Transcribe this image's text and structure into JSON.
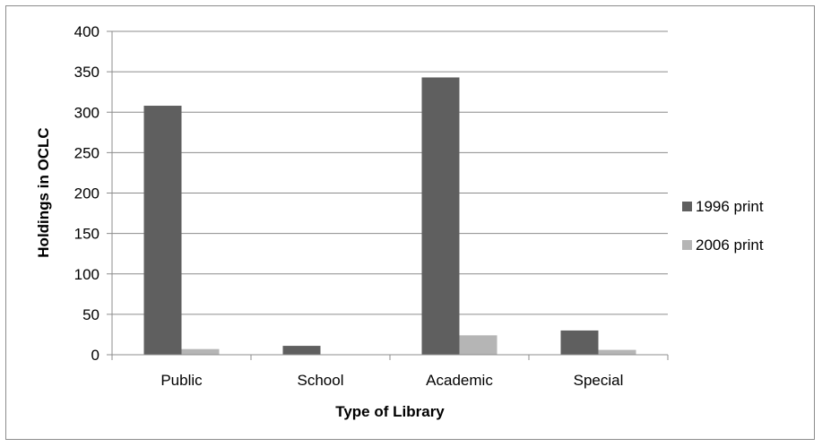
{
  "chart_data": {
    "type": "bar",
    "categories": [
      "Public",
      "School",
      "Academic",
      "Special"
    ],
    "series": [
      {
        "name": "1996 print",
        "values": [
          308,
          11,
          343,
          30
        ],
        "color": "#5f5f5f"
      },
      {
        "name": "2006 print",
        "values": [
          7,
          0,
          24,
          6
        ],
        "color": "#b5b5b5"
      }
    ],
    "title": "",
    "xlabel": "Type of Library",
    "ylabel": "Holdings in OCLC",
    "ylim": [
      0,
      400
    ],
    "yticks": [
      "0",
      "50",
      "100",
      "150",
      "200",
      "250",
      "300",
      "350",
      "400"
    ],
    "grid": true,
    "legend_position": "right"
  }
}
